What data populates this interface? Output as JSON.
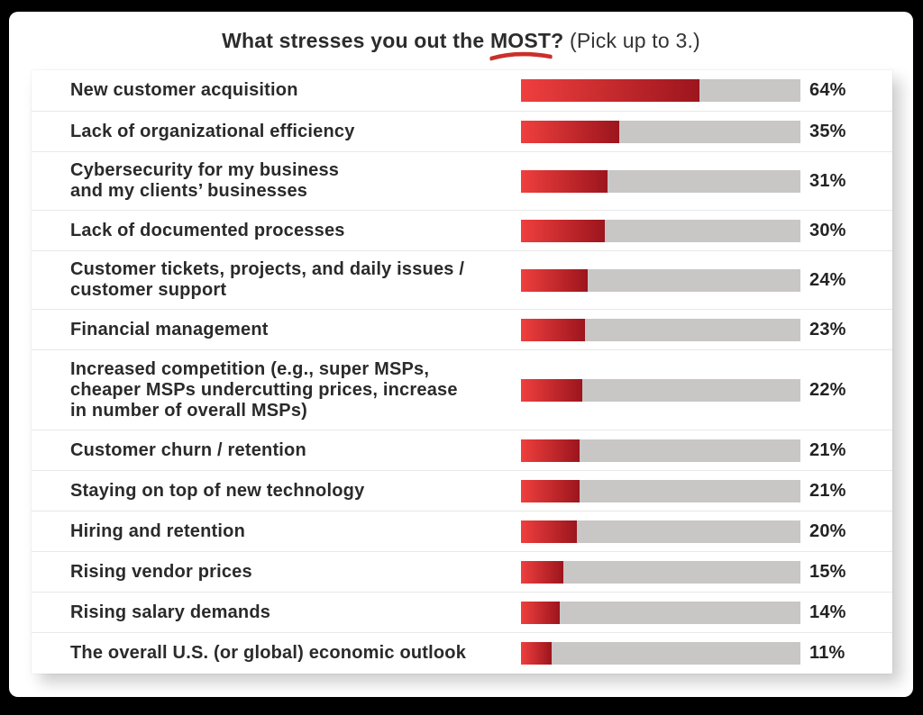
{
  "title": {
    "prefix": "What stresses you out the",
    "emphasis": "MOST?",
    "suffix": "(Pick up to 3.)"
  },
  "colors": {
    "frame_black": "#000000",
    "page_white": "#ffffff",
    "bar_red_start": "#ef3f3e",
    "bar_red_end": "#9c151d",
    "track_gray": "#c9c6c6",
    "underline_red": "#cb2f2a",
    "text_dark": "#2b2a2a",
    "separator": "#e9e8e8"
  },
  "unit": "%",
  "chart_data": {
    "type": "bar",
    "orientation": "horizontal",
    "title": "What stresses you out the MOST? (Pick up to 3.)",
    "categories": [
      "New customer acquisition",
      "Lack of organizational efficiency",
      "Cybersecurity for my business and my clients’ businesses",
      "Lack of documented processes",
      "Customer tickets, projects, and daily issues / customer support",
      "Financial management",
      "Increased competition (e.g., super MSPs, cheaper MSPs undercutting prices, increase in number of overall MSPs)",
      "Customer churn / retention",
      "Staying on top of new technology",
      "Hiring and retention",
      "Rising vendor prices",
      "Rising salary demands",
      "The overall U.S. (or global) economic outlook"
    ],
    "values": [
      64,
      35,
      31,
      30,
      24,
      23,
      22,
      21,
      21,
      20,
      15,
      14,
      11
    ],
    "value_format": "percent",
    "xlim": [
      0,
      100
    ],
    "grid": false,
    "legend": "none",
    "bar_track_color": "#c9c6c6",
    "bar_fill_gradient": [
      "#ef3f3e",
      "#9c151d"
    ]
  },
  "rows": [
    {
      "lines": [
        "New customer acquisition"
      ],
      "value": 64
    },
    {
      "lines": [
        "Lack of organizational efficiency"
      ],
      "value": 35
    },
    {
      "lines": [
        "Cybersecurity for my business",
        "and my clients’ businesses"
      ],
      "value": 31
    },
    {
      "lines": [
        "Lack of documented processes"
      ],
      "value": 30
    },
    {
      "lines": [
        "Customer tickets, projects, and daily issues /",
        "customer support"
      ],
      "value": 24
    },
    {
      "lines": [
        "Financial management"
      ],
      "value": 23
    },
    {
      "lines": [
        "Increased competition (e.g., super MSPs,",
        "cheaper MSPs undercutting prices, increase",
        "in number of overall MSPs)"
      ],
      "value": 22
    },
    {
      "lines": [
        "Customer churn / retention"
      ],
      "value": 21
    },
    {
      "lines": [
        "Staying on top of new technology"
      ],
      "value": 21
    },
    {
      "lines": [
        "Hiring and retention"
      ],
      "value": 20
    },
    {
      "lines": [
        "Rising vendor prices"
      ],
      "value": 15
    },
    {
      "lines": [
        "Rising salary demands"
      ],
      "value": 14
    },
    {
      "lines": [
        "The overall U.S. (or global) economic outlook"
      ],
      "value": 11
    }
  ]
}
